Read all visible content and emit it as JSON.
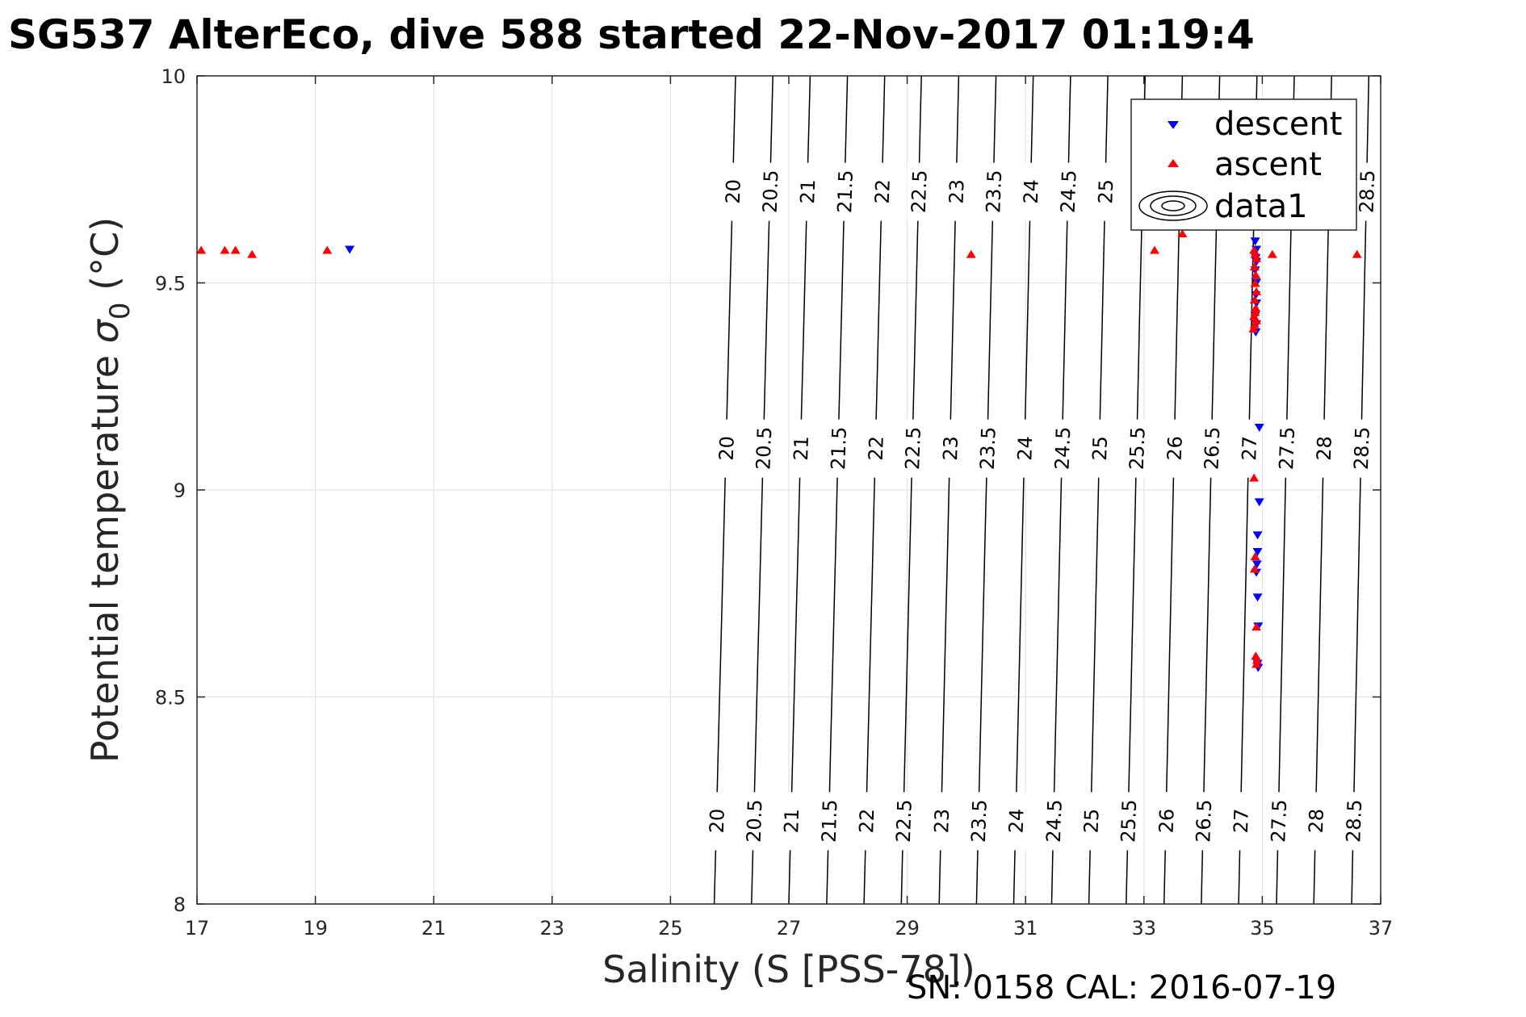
{
  "chart_data": {
    "type": "scatter",
    "title": "SG537 AlterEco, dive 588 started 22-Nov-2017 01:19:4",
    "xlabel": "Salinity (S [PSS-78])",
    "ylabel_main": "Potential temperature ",
    "ylabel_sigma": "σ",
    "ylabel_sub": "0",
    "ylabel_unit": " (°C)",
    "xlim": [
      17,
      37
    ],
    "ylim": [
      8,
      10
    ],
    "xticks": [
      "17",
      "19",
      "21",
      "23",
      "25",
      "27",
      "29",
      "31",
      "33",
      "35",
      "37"
    ],
    "yticks": [
      "8",
      "8.5",
      "9",
      "9.5",
      "10"
    ],
    "grid": true,
    "legend_position": "top-right",
    "legend": [
      "descent",
      "ascent",
      "data1"
    ],
    "density_contours": {
      "levels": [
        "20",
        "20.5",
        "21",
        "21.5",
        "22",
        "22.5",
        "23",
        "23.5",
        "24",
        "24.5",
        "25",
        "25.5",
        "26",
        "26.5",
        "27",
        "27.5",
        "28",
        "28.5"
      ],
      "salinity_at_8": [
        25.74,
        26.37,
        27.0,
        27.64,
        28.27,
        28.9,
        29.54,
        30.17,
        30.8,
        31.44,
        32.07,
        32.7,
        33.34,
        33.97,
        34.6,
        35.24,
        35.87,
        36.51
      ],
      "salinity_at_10": [
        26.1,
        26.73,
        27.36,
        27.99,
        28.62,
        29.24,
        29.87,
        30.5,
        31.13,
        31.76,
        32.39,
        33.02,
        33.65,
        34.28,
        34.91,
        35.54,
        36.17,
        36.8
      ]
    },
    "series": [
      {
        "name": "descent",
        "color": "#0000ff",
        "marker": "triangle-down",
        "points": [
          [
            19.58,
            9.58
          ],
          [
            34.88,
            9.6
          ],
          [
            34.9,
            9.58
          ],
          [
            34.89,
            9.56
          ],
          [
            34.9,
            9.55
          ],
          [
            34.88,
            9.53
          ],
          [
            34.9,
            9.5
          ],
          [
            34.89,
            9.47
          ],
          [
            34.9,
            9.45
          ],
          [
            34.88,
            9.42
          ],
          [
            34.9,
            9.4
          ],
          [
            34.89,
            9.38
          ],
          [
            34.95,
            9.15
          ],
          [
            34.95,
            8.97
          ],
          [
            34.92,
            8.89
          ],
          [
            34.92,
            8.85
          ],
          [
            34.91,
            8.82
          ],
          [
            34.9,
            8.8
          ],
          [
            34.92,
            8.74
          ],
          [
            34.93,
            8.67
          ],
          [
            34.92,
            8.58
          ],
          [
            34.93,
            8.57
          ]
        ]
      },
      {
        "name": "ascent",
        "color": "#ff0000",
        "marker": "triangle-up",
        "points": [
          [
            17.07,
            9.58
          ],
          [
            17.47,
            9.58
          ],
          [
            17.65,
            9.58
          ],
          [
            17.93,
            9.57
          ],
          [
            19.2,
            9.58
          ],
          [
            30.08,
            9.57
          ],
          [
            33.18,
            9.58
          ],
          [
            33.65,
            9.62
          ],
          [
            34.86,
            9.58
          ],
          [
            34.88,
            9.57
          ],
          [
            34.9,
            9.56
          ],
          [
            34.87,
            9.54
          ],
          [
            34.89,
            9.52
          ],
          [
            34.88,
            9.5
          ],
          [
            34.9,
            9.48
          ],
          [
            34.87,
            9.46
          ],
          [
            34.89,
            9.44
          ],
          [
            34.88,
            9.43
          ],
          [
            34.86,
            9.42
          ],
          [
            34.9,
            9.41
          ],
          [
            34.87,
            9.4
          ],
          [
            34.85,
            9.39
          ],
          [
            35.17,
            9.57
          ],
          [
            36.6,
            9.57
          ],
          [
            34.86,
            9.03
          ],
          [
            34.88,
            8.84
          ],
          [
            34.87,
            8.81
          ],
          [
            34.9,
            8.67
          ],
          [
            34.89,
            8.6
          ],
          [
            34.9,
            8.58
          ],
          [
            34.91,
            8.59
          ]
        ]
      }
    ]
  },
  "footer": {
    "text": "SN: 0158  CAL: 2016-07-19"
  }
}
